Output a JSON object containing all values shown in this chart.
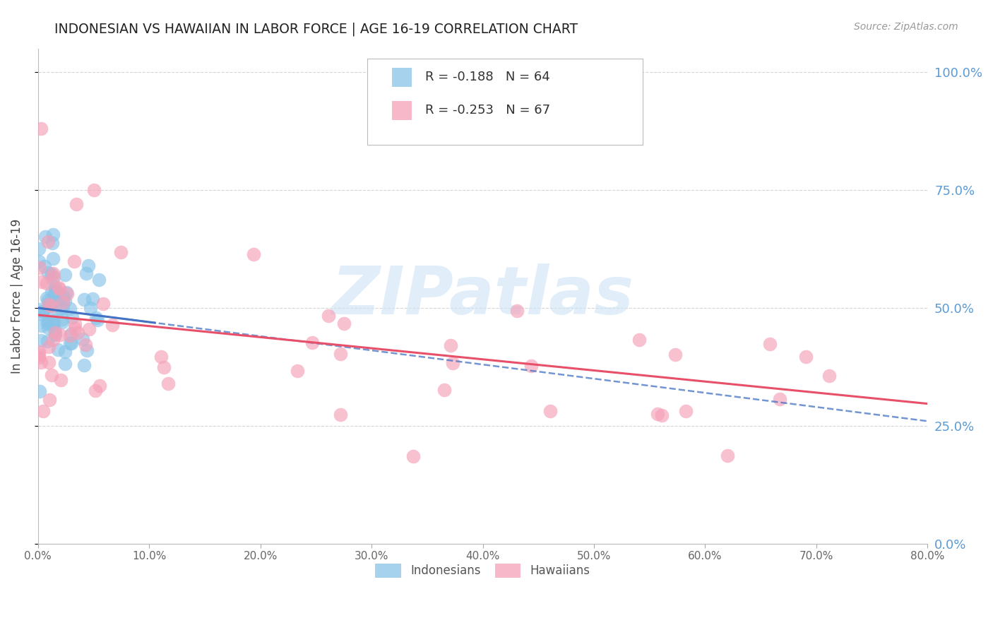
{
  "title": "INDONESIAN VS HAWAIIAN IN LABOR FORCE | AGE 16-19 CORRELATION CHART",
  "source": "Source: ZipAtlas.com",
  "ylabel": "In Labor Force | Age 16-19",
  "ytick_vals": [
    0.0,
    0.25,
    0.5,
    0.75,
    1.0
  ],
  "ytick_labels": [
    "0.0%",
    "25.0%",
    "50.0%",
    "75.0%",
    "100.0%"
  ],
  "xlim": [
    0.0,
    0.8
  ],
  "ylim": [
    0.0,
    1.05
  ],
  "indonesian_color": "#88c4e8",
  "hawaiian_color": "#f5a0b8",
  "trend_indonesian_color": "#4472c4",
  "trend_hawaiian_color": "#e8506a",
  "legend_r_indonesian": "R = -0.188",
  "legend_n_indonesian": "N = 64",
  "legend_r_hawaiian": "R = -0.253",
  "legend_n_hawaiian": "N = 67",
  "label_indonesian": "Indonesians",
  "label_hawaiian": "Hawaiians",
  "watermark": "ZIPatlas",
  "background_color": "#ffffff",
  "grid_color": "#cccccc",
  "right_tick_color": "#5b9bd5"
}
